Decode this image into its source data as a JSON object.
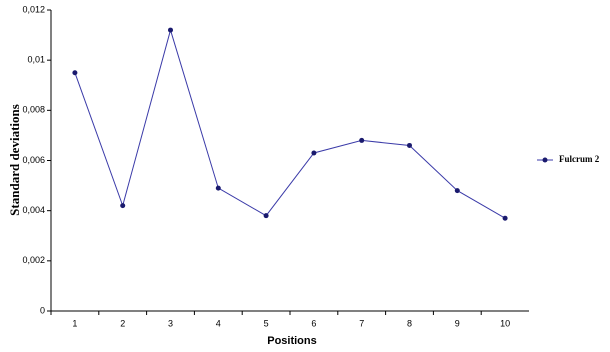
{
  "chart_data": {
    "type": "line",
    "x_label": "Positions",
    "y_label": "Standard deviations",
    "categories": [
      "1",
      "2",
      "3",
      "4",
      "5",
      "6",
      "7",
      "8",
      "9",
      "10"
    ],
    "series": [
      {
        "name": "Fulcrum 2",
        "color": "#3a3aa8",
        "values": [
          0.0095,
          0.0042,
          0.0112,
          0.0049,
          0.0038,
          0.0063,
          0.0068,
          0.0066,
          0.0048,
          0.0037
        ]
      }
    ],
    "ylim": [
      0,
      0.012
    ],
    "yticks": [
      0,
      {
        "value": 0.002,
        "label": "0,002"
      },
      {
        "value": 0.004,
        "label": "0,004"
      },
      {
        "value": 0.006,
        "label": "0,006"
      },
      {
        "value": 0.008,
        "label": "0,008"
      },
      {
        "value": 0.01,
        "label": "0,01"
      },
      {
        "value": 0.012,
        "label": "0,012"
      }
    ],
    "grid": false,
    "legend": "right"
  }
}
